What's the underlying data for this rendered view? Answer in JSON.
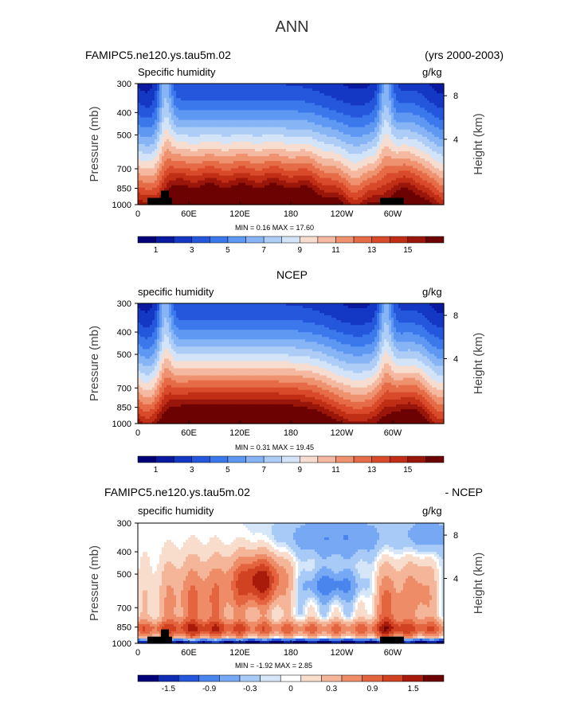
{
  "page_title": "ANN",
  "panels": [
    {
      "left_title": "FAMIPC5.ne120.ys.tau5m.02",
      "center_title": "",
      "right_title": "(yrs 2000-2003)",
      "variable_label": "Specific humidity",
      "units": "g/kg",
      "minmax": "MIN =    0.16   MAX =    17.60",
      "colorbar_labels": [
        "1",
        "3",
        "5",
        "7",
        "9",
        "11",
        "13",
        "15"
      ]
    },
    {
      "left_title": "",
      "center_title": "NCEP",
      "right_title": "",
      "variable_label": "specific humidity",
      "units": "g/kg",
      "minmax": "MIN =    0.31   MAX =    19.45",
      "colorbar_labels": [
        "1",
        "3",
        "5",
        "7",
        "9",
        "11",
        "13",
        "15"
      ]
    },
    {
      "left_title": "FAMIPC5.ne120.ys.tau5m.02",
      "center_title": "",
      "right_title": "- NCEP",
      "variable_label": "specific humidity",
      "units": "g/kg",
      "minmax": "MIN =   -1.92   MAX =    2.85",
      "colorbar_labels": [
        "-1.5",
        "-0.9",
        "-0.3",
        "0",
        "0.3",
        "0.9",
        "1.5"
      ]
    }
  ],
  "axes": {
    "pressure_label": "Pressure (mb)",
    "height_label": "Height (km)",
    "pressure_ticks": [
      "300",
      "400",
      "500",
      "700",
      "850",
      "1000"
    ],
    "height_ticks": [
      "8",
      "4"
    ],
    "lon_ticks": [
      "0",
      "60E",
      "120E",
      "180",
      "120W",
      "60W"
    ]
  },
  "chart_data": [
    {
      "type": "heatmap",
      "title": "FAMIPC5.ne120.ys.tau5m.02",
      "subtitle": "Specific humidity",
      "units": "g/kg",
      "xlabel": "",
      "ylabel": "Pressure (mb)",
      "y2label": "Height (km)",
      "x_ticks": [
        "0",
        "60E",
        "120E",
        "180",
        "120W",
        "60W"
      ],
      "y_ticks": [
        300,
        400,
        500,
        700,
        850,
        1000
      ],
      "ylim": [
        300,
        1000
      ],
      "min": 0.16,
      "max": 17.6,
      "contour_levels": [
        1,
        2,
        3,
        4,
        5,
        6,
        7,
        8,
        9,
        10,
        11,
        12,
        13,
        14,
        15,
        16
      ]
    },
    {
      "type": "heatmap",
      "title": "NCEP",
      "subtitle": "specific humidity",
      "units": "g/kg",
      "xlabel": "",
      "ylabel": "Pressure (mb)",
      "y2label": "Height (km)",
      "x_ticks": [
        "0",
        "60E",
        "120E",
        "180",
        "120W",
        "60W"
      ],
      "y_ticks": [
        300,
        400,
        500,
        700,
        850,
        1000
      ],
      "ylim": [
        300,
        1000
      ],
      "min": 0.31,
      "max": 19.45,
      "contour_levels": [
        1,
        2,
        3,
        4,
        5,
        6,
        7,
        8,
        9,
        10,
        11,
        12,
        13,
        14,
        15,
        16
      ]
    },
    {
      "type": "heatmap",
      "title": "FAMIPC5.ne120.ys.tau5m.02 - NCEP",
      "subtitle": "specific humidity",
      "units": "g/kg",
      "xlabel": "",
      "ylabel": "Pressure (mb)",
      "y2label": "Height (km)",
      "x_ticks": [
        "0",
        "60E",
        "120E",
        "180",
        "120W",
        "60W"
      ],
      "y_ticks": [
        300,
        400,
        500,
        700,
        850,
        1000
      ],
      "ylim": [
        300,
        1000
      ],
      "min": -1.92,
      "max": 2.85,
      "contour_levels": [
        -1.8,
        -1.5,
        -1.2,
        -0.9,
        -0.6,
        -0.3,
        -0.1,
        0,
        0.1,
        0.3,
        0.6,
        0.9,
        1.2,
        1.5,
        1.8
      ]
    }
  ],
  "colors": {
    "abs_scale": [
      "#00007a",
      "#0a1aa0",
      "#1437c4",
      "#2457dc",
      "#3b78ec",
      "#5e98f2",
      "#86b4f5",
      "#adcdf7",
      "#d3e4f8",
      "#f7ddd0",
      "#f4b9a0",
      "#ee9270",
      "#e66b47",
      "#d94a2a",
      "#c02e16",
      "#9a160a",
      "#6c0202"
    ],
    "diff_scale": [
      "#00007a",
      "#0f2cb4",
      "#2457dc",
      "#4a85ee",
      "#76a8f4",
      "#a8caf7",
      "#d6e6f9",
      "#ffffff",
      "#f8dccc",
      "#f4b598",
      "#ee8c68",
      "#e4643f",
      "#d14222",
      "#a81a0a",
      "#6c0202"
    ],
    "terrain": "#000000"
  }
}
